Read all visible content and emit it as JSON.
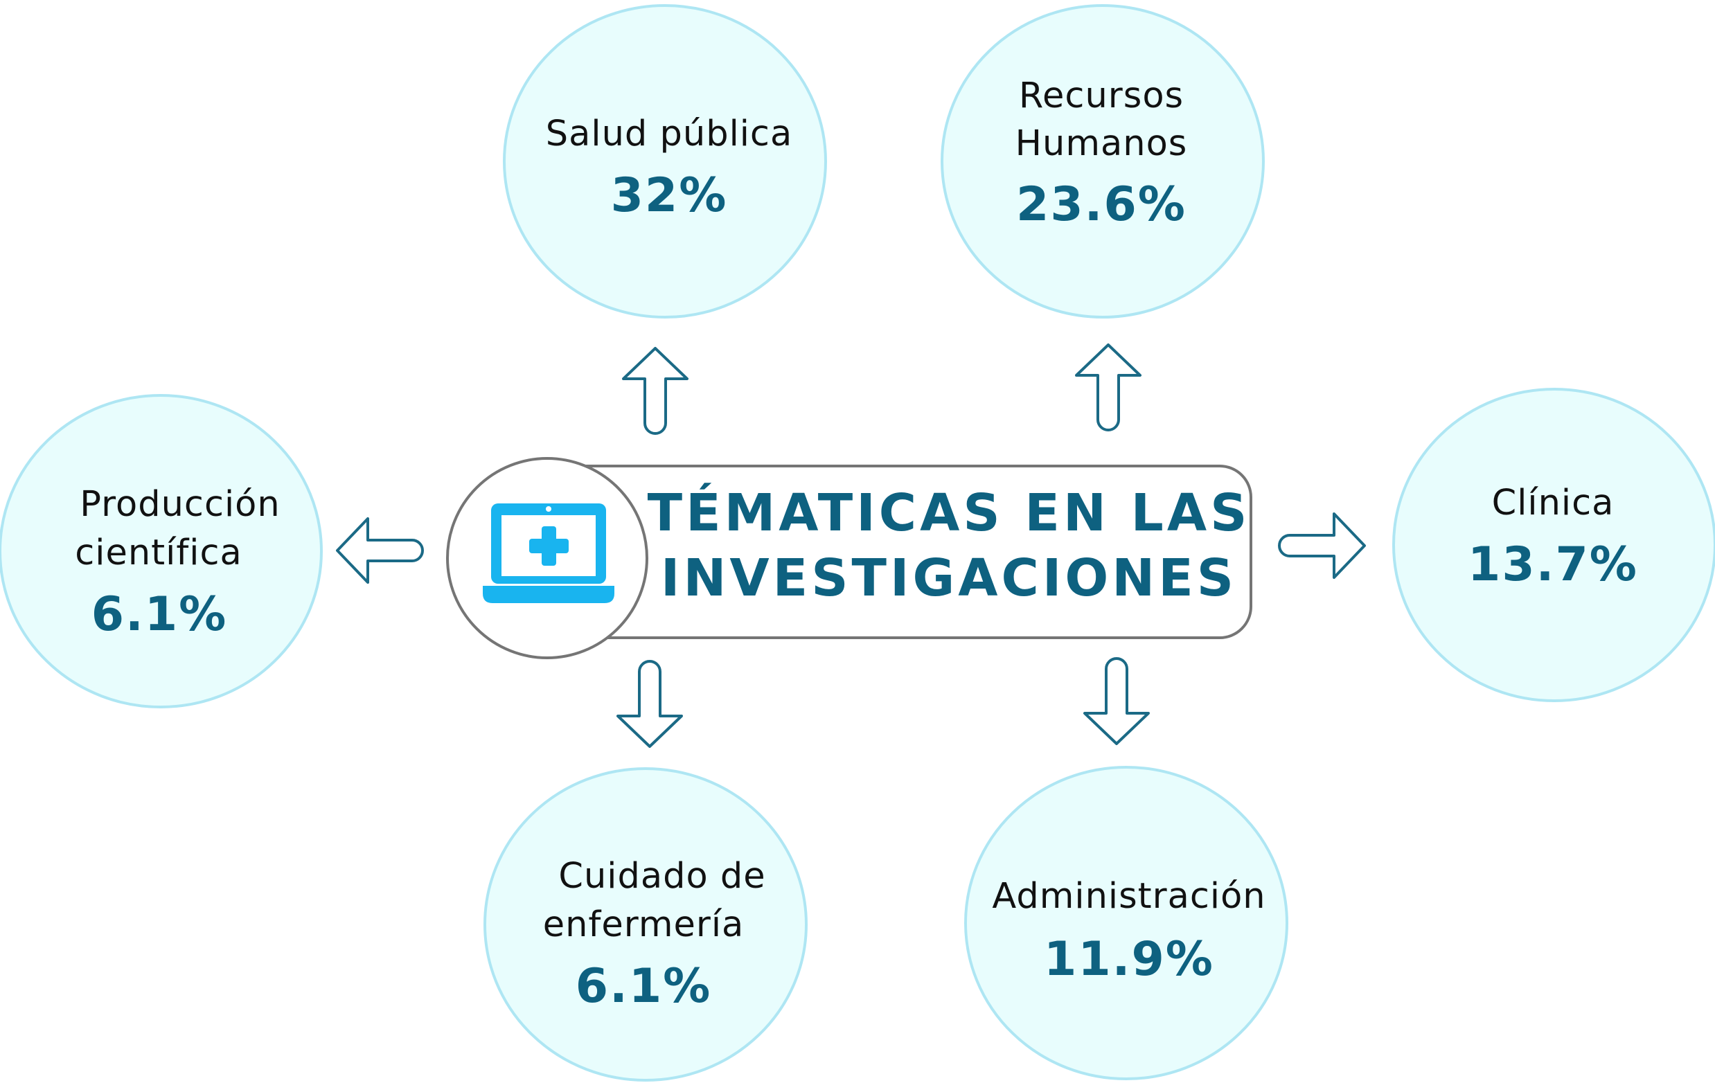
{
  "title": {
    "line1": "TÉMATICAS EN LAS",
    "line2": "INVESTIGACIONES",
    "icon": "laptop-medical-icon"
  },
  "nodes": [
    {
      "id": "salud-publica",
      "label_lines": [
        "Salud pública"
      ],
      "value": "32%"
    },
    {
      "id": "recursos-humanos",
      "label_lines": [
        "Recursos",
        "Humanos"
      ],
      "value": "23.6%"
    },
    {
      "id": "produccion-cientifica",
      "label_lines": [
        "Producción",
        "científica"
      ],
      "value": "6.1%"
    },
    {
      "id": "clinica",
      "label_lines": [
        "Clínica"
      ],
      "value": "13.7%"
    },
    {
      "id": "cuidado-enfermeria",
      "label_lines": [
        "Cuidado de",
        "enfermería"
      ],
      "value": "6.1%"
    },
    {
      "id": "administracion",
      "label_lines": [
        "Administración"
      ],
      "value": "11.9%"
    }
  ],
  "colors": {
    "circle_fill": "#e8fdfd",
    "circle_stroke": "#aee6f3",
    "value_text": "#0e6180",
    "arrow_stroke": "#1b6a86",
    "icon_blue": "#19b4ef",
    "hub_stroke": "#757575"
  }
}
